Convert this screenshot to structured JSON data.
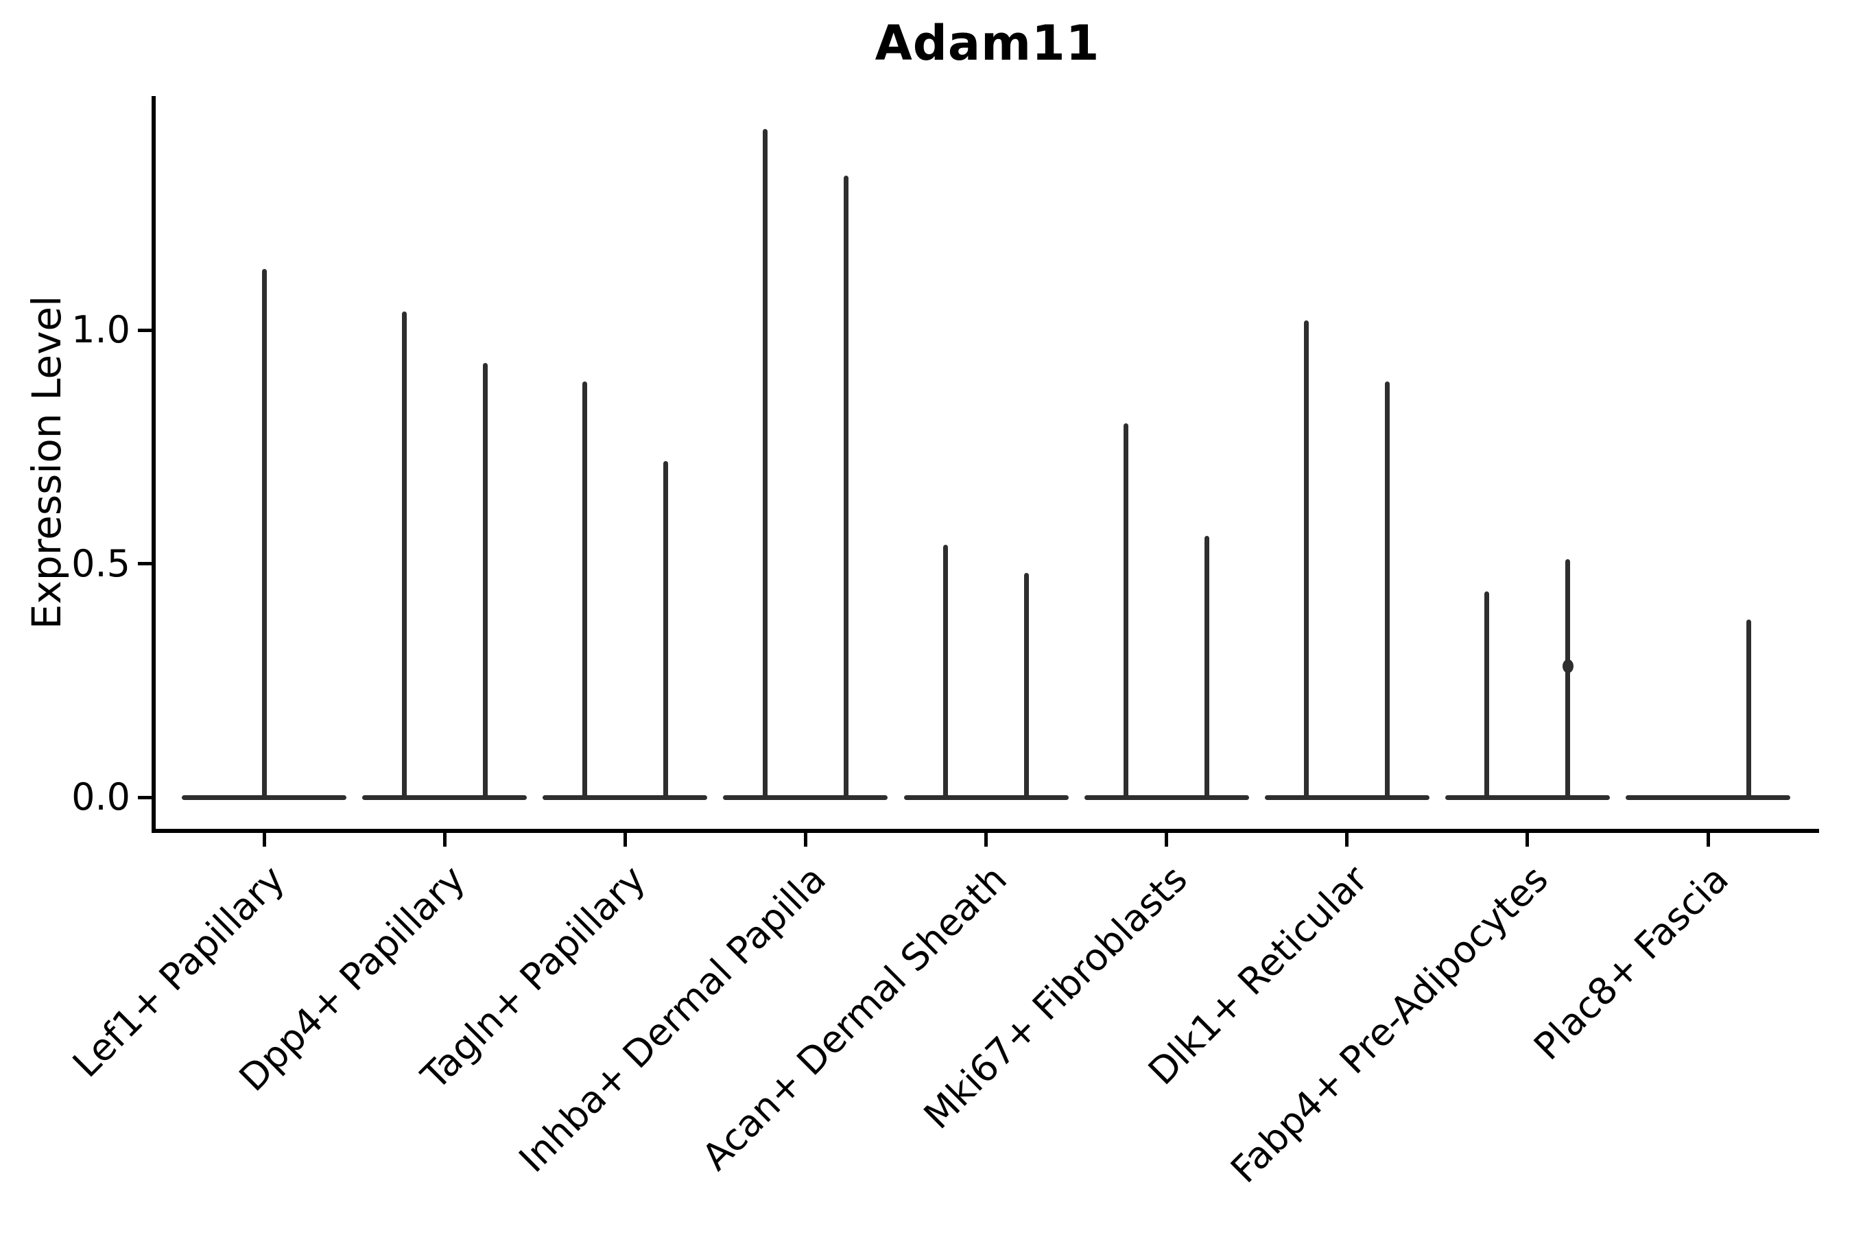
{
  "title": "Adam11",
  "chart_data": {
    "type": "violin",
    "title": "Adam11",
    "xlabel": "",
    "ylabel": "Expression Level",
    "ylim": [
      0,
      1.5
    ],
    "yticks": [
      0.0,
      0.5,
      1.0
    ],
    "ytick_labels": [
      "0.0",
      "0.5",
      "1.0"
    ],
    "grid": false,
    "legend": "none",
    "x_tick_rotation_deg": 45,
    "line_color": "#2e2e2e",
    "axis_color": "#000000",
    "baseline_value": 0.0,
    "categories": [
      "Lef1+ Papillary",
      "Dpp4+ Papillary",
      "Tagln+ Papillary",
      "Inhba+ Dermal Papilla",
      "Acan+ Dermal Sheath",
      "Mki67+ Fibroblasts",
      "Dlk1+ Reticular",
      "Fabp4+ Pre-Adipocytes",
      "Plac8+ Fascia"
    ],
    "series": [
      {
        "category": "Lef1+ Papillary",
        "violins": [
          {
            "position": "center",
            "max": 1.13
          }
        ]
      },
      {
        "category": "Dpp4+ Papillary",
        "violins": [
          {
            "position": "left",
            "max": 1.04
          },
          {
            "position": "right",
            "max": 0.93
          }
        ]
      },
      {
        "category": "Tagln+ Papillary",
        "violins": [
          {
            "position": "left",
            "max": 0.89
          },
          {
            "position": "right",
            "max": 0.72
          }
        ]
      },
      {
        "category": "Inhba+ Dermal Papilla",
        "violins": [
          {
            "position": "left",
            "max": 1.43
          },
          {
            "position": "right",
            "max": 1.33
          }
        ]
      },
      {
        "category": "Acan+ Dermal Sheath",
        "violins": [
          {
            "position": "left",
            "max": 0.54
          },
          {
            "position": "right",
            "max": 0.48
          }
        ]
      },
      {
        "category": "Mki67+ Fibroblasts",
        "violins": [
          {
            "position": "left",
            "max": 0.8
          },
          {
            "position": "right",
            "max": 0.56
          }
        ]
      },
      {
        "category": "Dlk1+ Reticular",
        "violins": [
          {
            "position": "left",
            "max": 1.02
          },
          {
            "position": "right",
            "max": 0.89
          }
        ]
      },
      {
        "category": "Fabp4+ Pre-Adipocytes",
        "violins": [
          {
            "position": "left",
            "max": 0.44
          },
          {
            "position": "right",
            "max": 0.51,
            "bump": 0.28
          }
        ]
      },
      {
        "category": "Plac8+ Fascia",
        "violins": [
          {
            "position": "right",
            "max": 0.38
          }
        ]
      }
    ]
  }
}
